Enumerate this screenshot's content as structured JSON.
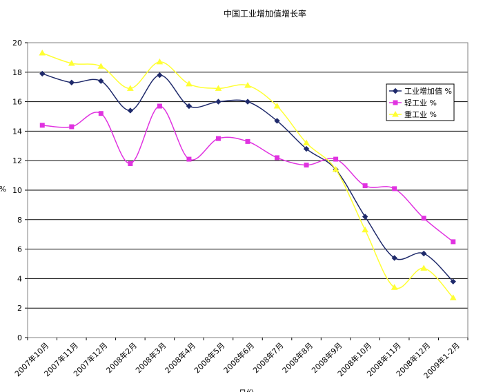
{
  "chart_data": {
    "type": "line",
    "title": "中国工业增加值增长率",
    "xlabel": "日份",
    "ylabel": "%",
    "ylim": [
      0,
      20
    ],
    "yticks": [
      0,
      2,
      4,
      6,
      8,
      10,
      12,
      14,
      16,
      18,
      20
    ],
    "grid": true,
    "legend_position": "right",
    "categories": [
      "2007年10月",
      "2007年11月",
      "2007年12月",
      "2008年2月",
      "2008年3月",
      "2008年4月",
      "2008年5月",
      "2008年6月",
      "2008年7月",
      "2008年8月",
      "2008年9月",
      "2008年10月",
      "2008年11月",
      "2008年12月",
      "2009年1-2月"
    ],
    "series": [
      {
        "name": "工业增加值 %",
        "color": "#1f2a6b",
        "marker": "diamond",
        "values": [
          17.9,
          17.3,
          17.4,
          15.4,
          17.8,
          15.7,
          16.0,
          16.0,
          14.7,
          12.8,
          11.4,
          8.2,
          5.4,
          5.7,
          3.8
        ]
      },
      {
        "name": "轻工业 %",
        "color": "#e033e0",
        "marker": "square",
        "values": [
          14.4,
          14.3,
          15.2,
          11.8,
          15.7,
          12.1,
          13.5,
          13.3,
          12.2,
          11.7,
          12.1,
          10.3,
          10.1,
          8.1,
          6.5
        ]
      },
      {
        "name": "重工业 %",
        "color": "#ffff33",
        "marker": "triangle",
        "values": [
          19.3,
          18.6,
          18.4,
          16.9,
          18.7,
          17.2,
          16.9,
          17.1,
          15.7,
          13.2,
          11.4,
          7.3,
          3.4,
          4.7,
          2.7
        ]
      }
    ]
  }
}
